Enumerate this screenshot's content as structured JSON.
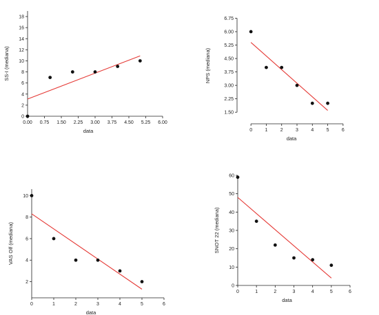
{
  "chart_data": [
    {
      "type": "scatter",
      "ylabel": "SS-I (mediana)",
      "xlabel": "data",
      "x_ticks": [
        "0.00",
        "0.75",
        "1.50",
        "2.25",
        "3.00",
        "3.75",
        "4.50",
        "5.25",
        "6.00"
      ],
      "y_ticks": [
        "0",
        "2",
        "4",
        "6",
        "8",
        "10",
        "12",
        "14",
        "16",
        "18"
      ],
      "xlim": [
        0,
        6.0
      ],
      "ylim": [
        0,
        19
      ],
      "points": [
        {
          "x": 0,
          "y": 0
        },
        {
          "x": 1,
          "y": 7
        },
        {
          "x": 2,
          "y": 8
        },
        {
          "x": 3,
          "y": 8
        },
        {
          "x": 4,
          "y": 9
        },
        {
          "x": 5,
          "y": 10
        }
      ],
      "trend_line": {
        "x": [
          0,
          5
        ],
        "y": [
          3.1,
          10.9
        ],
        "color": "#e53935"
      },
      "axis_style": "left-bottom"
    },
    {
      "type": "scatter",
      "ylabel": "NPS (mediana)",
      "xlabel": "data",
      "x_ticks": [
        "0",
        "1",
        "2",
        "3",
        "4",
        "5",
        "6"
      ],
      "y_ticks": [
        "1.50",
        "2.25",
        "3.00",
        "3.75",
        "4.50",
        "5.25",
        "6.00",
        "6.75"
      ],
      "xlim": [
        -0.5,
        6.5
      ],
      "ylim": [
        1.2,
        7.0
      ],
      "points": [
        {
          "x": 0,
          "y": 6
        },
        {
          "x": 1,
          "y": 4
        },
        {
          "x": 2,
          "y": 4
        },
        {
          "x": 3,
          "y": 3
        },
        {
          "x": 4,
          "y": 2
        },
        {
          "x": 5,
          "y": 2
        }
      ],
      "trend_line": {
        "x": [
          0,
          5
        ],
        "y": [
          5.4,
          1.6
        ],
        "color": "#e53935"
      },
      "axis_style": "offset"
    },
    {
      "type": "scatter",
      "ylabel": "VAS Olf (mediana)",
      "xlabel": "data",
      "x_ticks": [
        "0",
        "1",
        "2",
        "3",
        "4",
        "5",
        "6"
      ],
      "y_ticks": [
        "2",
        "4",
        "6",
        "8",
        "10"
      ],
      "xlim": [
        0,
        6
      ],
      "ylim": [
        0.5,
        10.6
      ],
      "points": [
        {
          "x": 0,
          "y": 10
        },
        {
          "x": 1,
          "y": 6
        },
        {
          "x": 2,
          "y": 4
        },
        {
          "x": 3,
          "y": 4
        },
        {
          "x": 4,
          "y": 3
        },
        {
          "x": 5,
          "y": 2
        }
      ],
      "trend_line": {
        "x": [
          0,
          5
        ],
        "y": [
          8.3,
          1.3
        ],
        "color": "#e53935"
      },
      "axis_style": "left-bottom"
    },
    {
      "type": "scatter",
      "ylabel": "SNOT 22 (mediana)",
      "xlabel": "data",
      "x_ticks": [
        "0",
        "1",
        "2",
        "3",
        "4",
        "5",
        "6"
      ],
      "y_ticks": [
        "0",
        "10",
        "20",
        "30",
        "40",
        "50",
        "60"
      ],
      "xlim": [
        0,
        6
      ],
      "ylim": [
        0,
        60
      ],
      "points": [
        {
          "x": 0,
          "y": 59
        },
        {
          "x": 1,
          "y": 35
        },
        {
          "x": 2,
          "y": 22
        },
        {
          "x": 3,
          "y": 15
        },
        {
          "x": 4,
          "y": 14
        },
        {
          "x": 5,
          "y": 11
        }
      ],
      "trend_line": {
        "x": [
          0,
          5
        ],
        "y": [
          48,
          4
        ],
        "color": "#e53935"
      },
      "axis_style": "left-bottom"
    }
  ]
}
